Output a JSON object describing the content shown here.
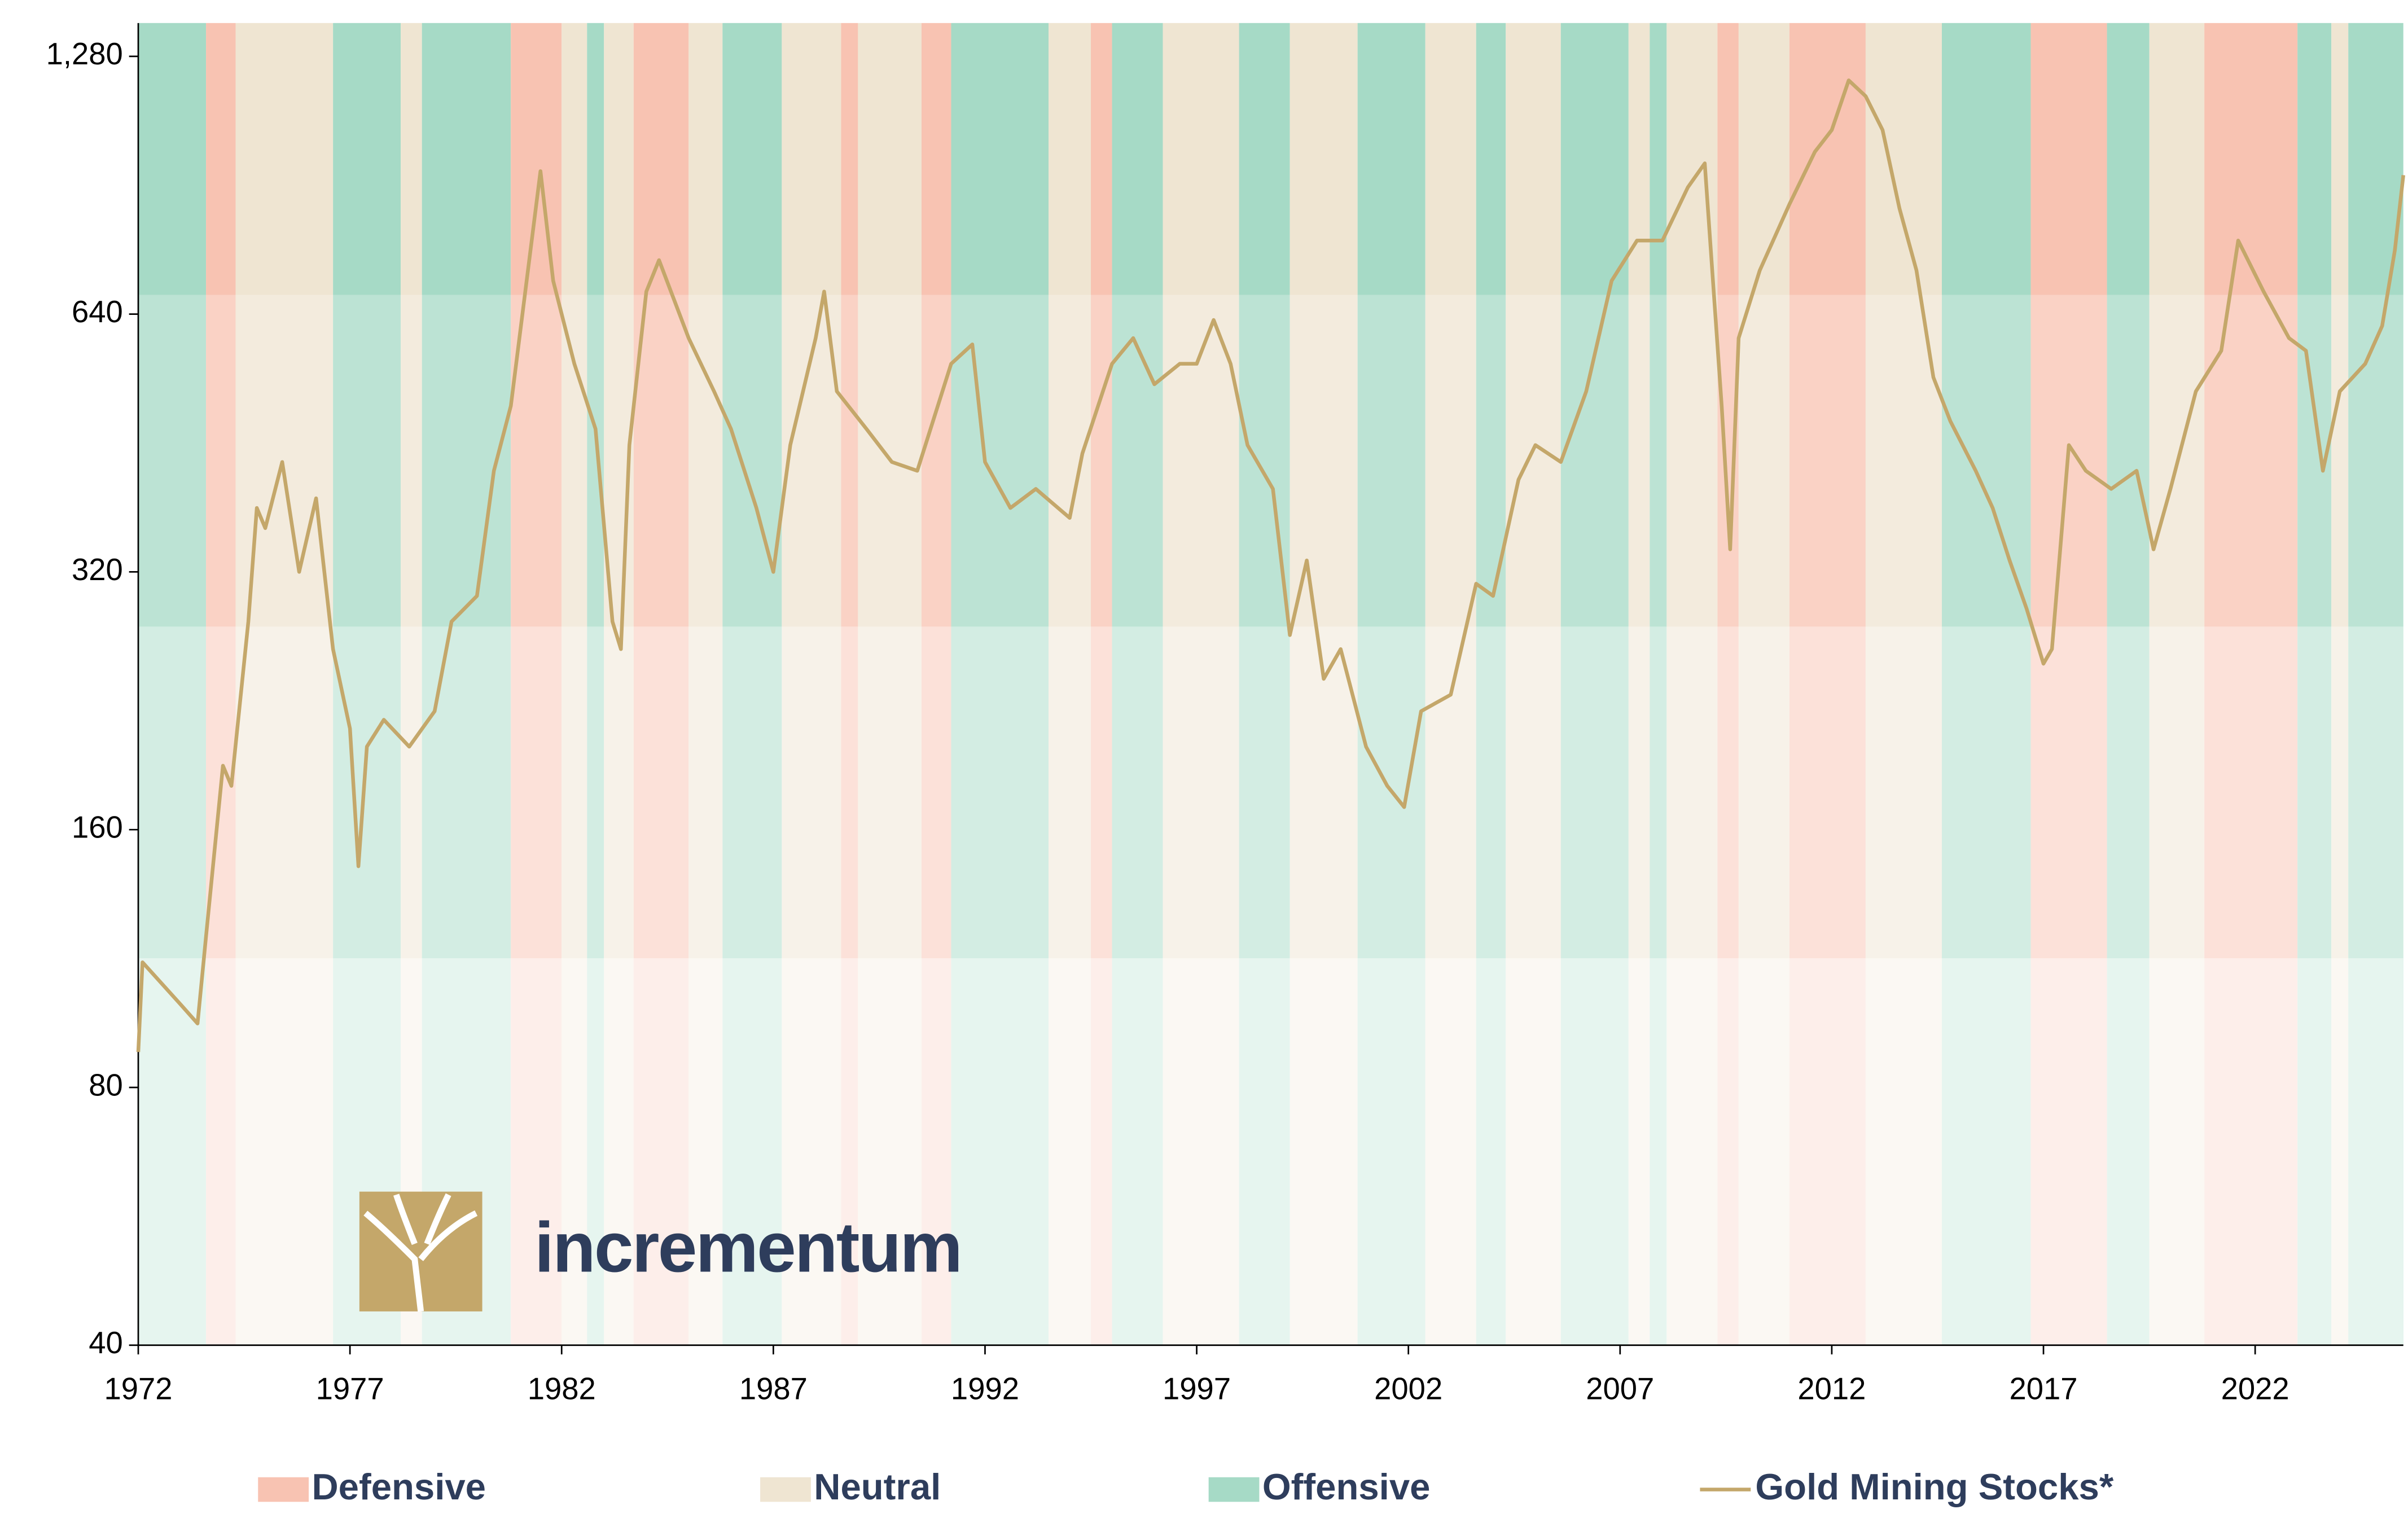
{
  "chart_data": {
    "type": "line",
    "log_scale": true,
    "xlim": [
      1972,
      2025.5
    ],
    "ylim": [
      40,
      1400
    ],
    "xticks": [
      1972,
      1977,
      1982,
      1987,
      1992,
      1997,
      2002,
      2007,
      2012,
      2017,
      2022
    ],
    "yticks": [
      40,
      80,
      160,
      320,
      640,
      {
        "value": 1280,
        "label": "1,280"
      }
    ],
    "logo_text": "incrementum",
    "regime_legend": [
      {
        "name": "Defensive",
        "color": "#f8c3b2"
      },
      {
        "name": "Neutral",
        "color": "#efe5d2"
      },
      {
        "name": "Offensive",
        "color": "#a6dac6"
      }
    ],
    "regimes": [
      {
        "start": 1972.0,
        "end": 1973.6,
        "regime": "Offensive"
      },
      {
        "start": 1973.6,
        "end": 1974.3,
        "regime": "Defensive"
      },
      {
        "start": 1974.3,
        "end": 1976.6,
        "regime": "Neutral"
      },
      {
        "start": 1976.6,
        "end": 1978.2,
        "regime": "Offensive"
      },
      {
        "start": 1978.2,
        "end": 1978.7,
        "regime": "Neutral"
      },
      {
        "start": 1978.7,
        "end": 1980.8,
        "regime": "Offensive"
      },
      {
        "start": 1980.8,
        "end": 1982.0,
        "regime": "Defensive"
      },
      {
        "start": 1982.0,
        "end": 1982.6,
        "regime": "Neutral"
      },
      {
        "start": 1982.6,
        "end": 1983.0,
        "regime": "Offensive"
      },
      {
        "start": 1983.0,
        "end": 1983.7,
        "regime": "Neutral"
      },
      {
        "start": 1983.7,
        "end": 1985.0,
        "regime": "Defensive"
      },
      {
        "start": 1985.0,
        "end": 1985.8,
        "regime": "Neutral"
      },
      {
        "start": 1985.8,
        "end": 1987.2,
        "regime": "Offensive"
      },
      {
        "start": 1987.2,
        "end": 1988.6,
        "regime": "Neutral"
      },
      {
        "start": 1988.6,
        "end": 1989.0,
        "regime": "Defensive"
      },
      {
        "start": 1989.0,
        "end": 1990.5,
        "regime": "Neutral"
      },
      {
        "start": 1990.5,
        "end": 1991.2,
        "regime": "Defensive"
      },
      {
        "start": 1991.2,
        "end": 1993.5,
        "regime": "Offensive"
      },
      {
        "start": 1993.5,
        "end": 1994.5,
        "regime": "Neutral"
      },
      {
        "start": 1994.5,
        "end": 1995.0,
        "regime": "Defensive"
      },
      {
        "start": 1995.0,
        "end": 1996.2,
        "regime": "Offensive"
      },
      {
        "start": 1996.2,
        "end": 1998.0,
        "regime": "Neutral"
      },
      {
        "start": 1998.0,
        "end": 1999.2,
        "regime": "Offensive"
      },
      {
        "start": 1999.2,
        "end": 2000.8,
        "regime": "Neutral"
      },
      {
        "start": 2000.8,
        "end": 2002.4,
        "regime": "Offensive"
      },
      {
        "start": 2002.4,
        "end": 2003.6,
        "regime": "Neutral"
      },
      {
        "start": 2003.6,
        "end": 2004.3,
        "regime": "Offensive"
      },
      {
        "start": 2004.3,
        "end": 2005.6,
        "regime": "Neutral"
      },
      {
        "start": 2005.6,
        "end": 2007.2,
        "regime": "Offensive"
      },
      {
        "start": 2007.2,
        "end": 2007.7,
        "regime": "Neutral"
      },
      {
        "start": 2007.7,
        "end": 2008.1,
        "regime": "Offensive"
      },
      {
        "start": 2008.1,
        "end": 2009.3,
        "regime": "Neutral"
      },
      {
        "start": 2009.3,
        "end": 2009.8,
        "regime": "Defensive"
      },
      {
        "start": 2009.8,
        "end": 2011.0,
        "regime": "Neutral"
      },
      {
        "start": 2011.0,
        "end": 2012.8,
        "regime": "Defensive"
      },
      {
        "start": 2012.8,
        "end": 2014.6,
        "regime": "Neutral"
      },
      {
        "start": 2014.6,
        "end": 2016.7,
        "regime": "Offensive"
      },
      {
        "start": 2016.7,
        "end": 2018.5,
        "regime": "Defensive"
      },
      {
        "start": 2018.5,
        "end": 2019.5,
        "regime": "Offensive"
      },
      {
        "start": 2019.5,
        "end": 2020.8,
        "regime": "Neutral"
      },
      {
        "start": 2020.8,
        "end": 2023.0,
        "regime": "Defensive"
      },
      {
        "start": 2023.0,
        "end": 2023.8,
        "regime": "Offensive"
      },
      {
        "start": 2023.8,
        "end": 2024.2,
        "regime": "Neutral"
      },
      {
        "start": 2024.2,
        "end": 2025.5,
        "regime": "Offensive"
      }
    ],
    "x": [
      1972.0,
      1972.1,
      1973.0,
      1973.4,
      1973.6,
      1974.0,
      1974.2,
      1974.6,
      1974.8,
      1975.0,
      1975.4,
      1975.8,
      1976.2,
      1976.6,
      1977.0,
      1977.2,
      1977.4,
      1977.8,
      1978.4,
      1979.0,
      1979.4,
      1980.0,
      1980.4,
      1980.8,
      1981.5,
      1981.8,
      1982.3,
      1982.8,
      1983.2,
      1983.4,
      1983.6,
      1984.0,
      1984.3,
      1985.0,
      1985.6,
      1986.0,
      1986.6,
      1987.0,
      1987.4,
      1988.0,
      1988.2,
      1988.5,
      1989.2,
      1989.8,
      1990.4,
      1991.2,
      1991.7,
      1992.0,
      1992.6,
      1993.2,
      1994.0,
      1994.3,
      1995.0,
      1995.5,
      1996.0,
      1996.6,
      1997.0,
      1997.4,
      1997.8,
      1998.2,
      1998.8,
      1999.2,
      1999.6,
      2000.0,
      2000.4,
      2001.0,
      2001.5,
      2001.9,
      2002.3,
      2003.0,
      2003.6,
      2004.0,
      2004.6,
      2005.0,
      2005.6,
      2006.2,
      2006.8,
      2007.4,
      2008.0,
      2008.6,
      2009.0,
      2009.4,
      2009.6,
      2009.8,
      2010.3,
      2011.0,
      2011.6,
      2012.0,
      2012.4,
      2012.8,
      2013.2,
      2013.6,
      2014.0,
      2014.4,
      2014.8,
      2015.4,
      2015.8,
      2016.2,
      2016.6,
      2017.0,
      2017.2,
      2017.6,
      2018.0,
      2018.6,
      2019.2,
      2019.6,
      2020.0,
      2020.6,
      2021.2,
      2021.6,
      2022.2,
      2022.8,
      2023.2,
      2023.6,
      2024.0,
      2024.6,
      2025.0,
      2025.3,
      2025.5
    ],
    "series": [
      {
        "name": "Gold Mining Stocks*",
        "color": "#c4a76a",
        "values": [
          88,
          112,
          100,
          95,
          120,
          190,
          180,
          280,
          380,
          360,
          430,
          320,
          390,
          260,
          210,
          145,
          200,
          215,
          200,
          220,
          280,
          300,
          420,
          500,
          940,
          700,
          560,
          470,
          280,
          260,
          450,
          680,
          740,
          600,
          520,
          470,
          380,
          320,
          450,
          600,
          680,
          520,
          470,
          430,
          420,
          560,
          590,
          430,
          380,
          400,
          370,
          440,
          560,
          600,
          530,
          560,
          560,
          630,
          560,
          450,
          400,
          270,
          330,
          240,
          260,
          200,
          180,
          170,
          220,
          230,
          310,
          300,
          410,
          450,
          430,
          520,
          700,
          780,
          780,
          900,
          960,
          500,
          340,
          600,
          720,
          860,
          990,
          1050,
          1200,
          1150,
          1050,
          850,
          720,
          540,
          480,
          420,
          380,
          330,
          290,
          250,
          260,
          450,
          420,
          400,
          420,
          340,
          400,
          520,
          580,
          780,
          680,
          600,
          580,
          420,
          520,
          560,
          620,
          760,
          930
        ]
      }
    ]
  }
}
